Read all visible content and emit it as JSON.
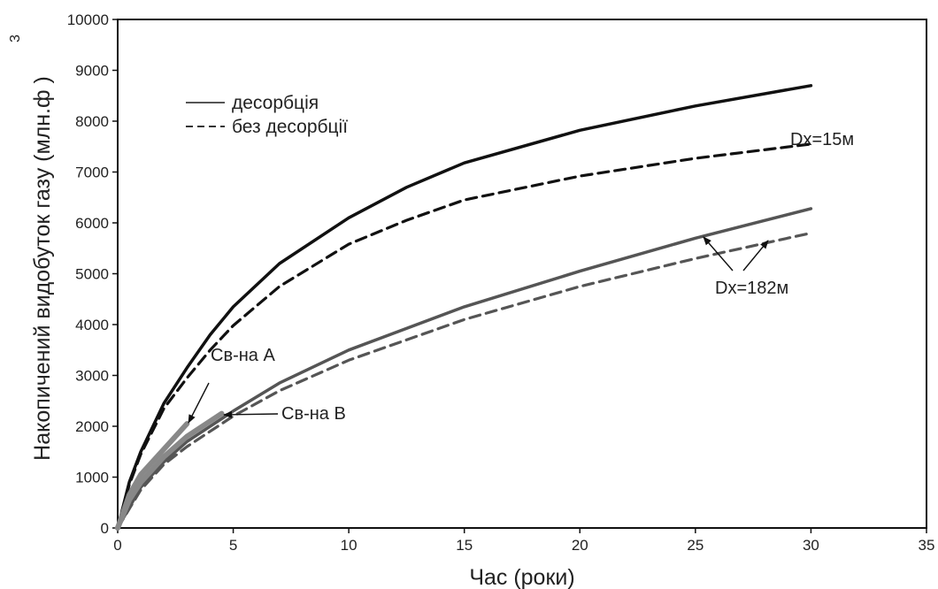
{
  "chart_data": {
    "type": "line",
    "xlabel": "Час (роки)",
    "ylabel": "Накопичений видобуток газу (млн.ф )",
    "ylabel_superscript": "3",
    "xlim": [
      0,
      35
    ],
    "ylim": [
      0,
      10000
    ],
    "x_ticks": [
      0,
      5,
      10,
      15,
      20,
      25,
      30,
      35
    ],
    "y_ticks": [
      0,
      1000,
      2000,
      3000,
      4000,
      5000,
      6000,
      7000,
      8000,
      9000,
      10000
    ],
    "grid": false,
    "legend": [
      {
        "label": "десорбція",
        "style": "solid"
      },
      {
        "label": "без десорбції",
        "style": "dashed"
      }
    ],
    "legend_position": "top-left",
    "series": [
      {
        "group": "Dx=15м",
        "style": "solid",
        "color": "#111111",
        "points": [
          [
            0,
            0
          ],
          [
            0.5,
            900
          ],
          [
            1,
            1500
          ],
          [
            2,
            2450
          ],
          [
            3,
            3150
          ],
          [
            4,
            3800
          ],
          [
            5,
            4350
          ],
          [
            7,
            5200
          ],
          [
            10,
            6100
          ],
          [
            12.5,
            6700
          ],
          [
            15,
            7180
          ],
          [
            20,
            7820
          ],
          [
            25,
            8300
          ],
          [
            30,
            8700
          ]
        ]
      },
      {
        "group": "Dx=15м",
        "style": "dashed",
        "color": "#111111",
        "points": [
          [
            0,
            0
          ],
          [
            0.5,
            850
          ],
          [
            1,
            1450
          ],
          [
            2,
            2350
          ],
          [
            3,
            2950
          ],
          [
            4,
            3500
          ],
          [
            5,
            3980
          ],
          [
            7,
            4750
          ],
          [
            10,
            5580
          ],
          [
            12.5,
            6050
          ],
          [
            15,
            6450
          ],
          [
            20,
            6920
          ],
          [
            25,
            7270
          ],
          [
            30,
            7550
          ]
        ]
      },
      {
        "group": "Dx=182м",
        "style": "solid",
        "color": "#555555",
        "points": [
          [
            0,
            0
          ],
          [
            1,
            800
          ],
          [
            2,
            1300
          ],
          [
            3,
            1700
          ],
          [
            5,
            2300
          ],
          [
            7,
            2850
          ],
          [
            10,
            3500
          ],
          [
            15,
            4350
          ],
          [
            20,
            5050
          ],
          [
            25,
            5700
          ],
          [
            30,
            6280
          ]
        ]
      },
      {
        "group": "Dx=182м",
        "style": "dashed",
        "color": "#555555",
        "points": [
          [
            0,
            0
          ],
          [
            1,
            750
          ],
          [
            2,
            1250
          ],
          [
            3,
            1600
          ],
          [
            5,
            2200
          ],
          [
            7,
            2700
          ],
          [
            10,
            3300
          ],
          [
            15,
            4100
          ],
          [
            20,
            4750
          ],
          [
            25,
            5300
          ],
          [
            30,
            5800
          ]
        ]
      },
      {
        "group": "Св-на A",
        "style": "thick",
        "color": "#888888",
        "points": [
          [
            0,
            0
          ],
          [
            0.5,
            650
          ],
          [
            1,
            1050
          ],
          [
            2,
            1550
          ],
          [
            3,
            2050
          ]
        ]
      },
      {
        "group": "Св-на B",
        "style": "thick",
        "color": "#888888",
        "points": [
          [
            0,
            0
          ],
          [
            0.5,
            550
          ],
          [
            1,
            900
          ],
          [
            2,
            1400
          ],
          [
            3,
            1800
          ],
          [
            4.5,
            2250
          ]
        ]
      }
    ],
    "annotations": [
      {
        "text": "Dx=15м"
      },
      {
        "text": "Dx=182м"
      },
      {
        "text": "Св-на A"
      },
      {
        "text": "Св-на B"
      }
    ]
  }
}
